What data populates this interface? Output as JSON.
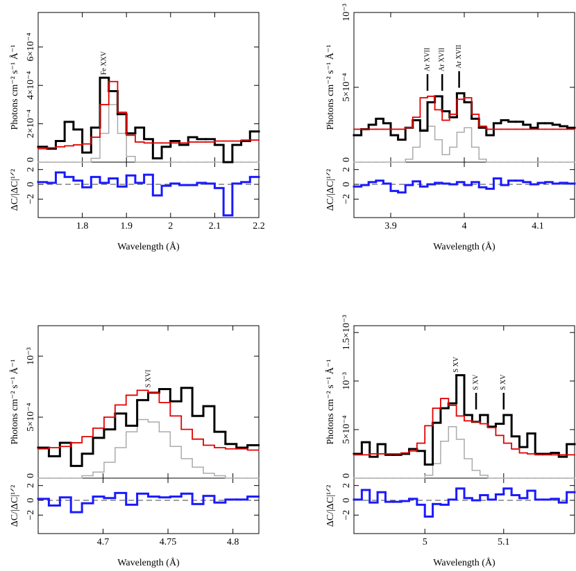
{
  "chart_data": [
    {
      "type": "step",
      "xlabel": "Wavelength (Å)",
      "ylabel": "Photons cm⁻² s⁻¹ Å⁻¹",
      "xlim": [
        1.7,
        2.2
      ],
      "xticks": [
        1.8,
        1.9,
        2,
        2.1,
        2.2
      ],
      "ylim": [
        0,
        0.00078
      ],
      "yticks": [
        0,
        {
          "value": 0.0002,
          "label": "2×10⁻⁴"
        },
        {
          "value": 0.0004,
          "label": "4×10⁻⁴"
        },
        {
          "value": 0.0006,
          "label": "6×10⁻⁴"
        }
      ],
      "x": [
        1.71,
        1.73,
        1.75,
        1.77,
        1.79,
        1.81,
        1.83,
        1.85,
        1.87,
        1.89,
        1.91,
        1.93,
        1.95,
        1.97,
        1.99,
        2.01,
        2.03,
        2.05,
        2.07,
        2.09,
        2.11,
        2.13,
        2.15,
        2.17,
        2.19
      ],
      "series": [
        {
          "color": "#aaaaaa",
          "width": 1.5,
          "values": [
            0,
            0,
            0,
            0,
            0,
            0,
            2e-05,
            0.00015,
            0.0003,
            0.00015,
            3e-05,
            0,
            0,
            0,
            0,
            0,
            0,
            0,
            0,
            0,
            0,
            0,
            0,
            0,
            0
          ]
        },
        {
          "color": "#000000",
          "width": 3,
          "values": [
            8e-05,
            7e-05,
            0.00011,
            0.00021,
            0.00017,
            5e-05,
            0.00018,
            0.00044,
            0.00037,
            0.00025,
            0.00015,
            0.00018,
            0.00012,
            2e-05,
            8e-05,
            0.00011,
            9e-05,
            0.00013,
            0.00012,
            0.00012,
            9e-05,
            0,
            9e-05,
            0.00011,
            0.00016
          ]
        },
        {
          "color": "#e00000",
          "width": 1.8,
          "values": [
            7e-05,
            7.5e-05,
            8e-05,
            8.5e-05,
            9e-05,
            9.5e-05,
            0.00013,
            0.0003,
            0.00042,
            0.00026,
            0.00014,
            0.000105,
            0.0001,
            0.0001,
            0.0001,
            0.0001,
            0.0001,
            0.000105,
            0.000105,
            0.000105,
            0.00011,
            0.00011,
            0.00011,
            0.000115,
            0.000115
          ]
        }
      ],
      "annotations": [
        {
          "text": "Fe XXV",
          "x": 1.85,
          "marker": false
        }
      ],
      "residuals": {
        "ylabel": "ΔC/|ΔC|¹ᐟ²",
        "color": "#1a1aff",
        "zero_line": true,
        "ylim": [
          -4.5,
          3
        ],
        "yticks": [
          {
            "value": -2,
            "label": "−2"
          },
          0,
          2
        ],
        "values": [
          0.3,
          0.2,
          1.6,
          1.0,
          0.5,
          -0.4,
          1.0,
          0.2,
          0.8,
          -0.3,
          1.2,
          0.2,
          1.3,
          -1.5,
          -0.2,
          0.1,
          -0.1,
          -0.1,
          0.2,
          0.1,
          -0.5,
          -4.2,
          0.1,
          0.3,
          1.0
        ]
      }
    },
    {
      "type": "step",
      "xlabel": "Wavelength (Å)",
      "ylabel": "Photons cm⁻² s⁻¹ Å⁻¹",
      "xlim": [
        3.85,
        4.15
      ],
      "xticks": [
        3.9,
        4,
        4.1
      ],
      "ylim": [
        0,
        0.001
      ],
      "yticks": [
        0,
        {
          "value": 0.0005,
          "label": "5×10⁻⁴"
        },
        {
          "value": 0.001,
          "label": "10⁻³"
        }
      ],
      "x": [
        3.855,
        3.865,
        3.875,
        3.885,
        3.895,
        3.905,
        3.915,
        3.925,
        3.935,
        3.945,
        3.955,
        3.965,
        3.975,
        3.985,
        3.995,
        4.005,
        4.015,
        4.025,
        4.035,
        4.045,
        4.055,
        4.065,
        4.075,
        4.085,
        4.095,
        4.105,
        4.115,
        4.125,
        4.135,
        4.145
      ],
      "series": [
        {
          "color": "#aaaaaa",
          "width": 1.5,
          "values": [
            0,
            0,
            0,
            0,
            0,
            0,
            0,
            2e-05,
            0.0001,
            0.00022,
            0.00024,
            0.00015,
            5e-05,
            0.0001,
            0.0002,
            0.00023,
            0.0001,
            2e-05,
            0,
            0,
            0,
            0,
            0,
            0,
            0,
            0,
            0,
            0,
            0,
            0
          ]
        },
        {
          "color": "#000000",
          "width": 3,
          "values": [
            0.00018,
            0.00022,
            0.00025,
            0.00029,
            0.00026,
            0.00018,
            0.00015,
            0.00023,
            0.00028,
            0.00021,
            0.0004,
            0.00044,
            0.00034,
            0.0003,
            0.00046,
            0.0004,
            0.00029,
            0.00023,
            0.00018,
            0.00026,
            0.00028,
            0.00027,
            0.00027,
            0.00025,
            0.00023,
            0.00026,
            0.00026,
            0.00025,
            0.00024,
            0.00023
          ]
        },
        {
          "color": "#e00000",
          "width": 1.8,
          "values": [
            0.00022,
            0.00022,
            0.00022,
            0.00022,
            0.00022,
            0.00022,
            0.00022,
            0.00023,
            0.0003,
            0.00043,
            0.00044,
            0.00035,
            0.00028,
            0.00032,
            0.00042,
            0.00043,
            0.00032,
            0.00024,
            0.00022,
            0.00022,
            0.00022,
            0.00022,
            0.00022,
            0.00022,
            0.00022,
            0.00022,
            0.00022,
            0.00022,
            0.00022,
            0.00022
          ]
        }
      ],
      "annotations": [
        {
          "text": "Ar XVII",
          "x": 3.95,
          "marker": true
        },
        {
          "text": "Ar XVII",
          "x": 3.97,
          "marker": true
        },
        {
          "text": "Ar XVII",
          "x": 3.993,
          "marker": true
        }
      ],
      "residuals": {
        "ylabel": "ΔC/|ΔC|¹ᐟ²",
        "color": "#1a1aff",
        "zero_line": true,
        "ylim": [
          -4.5,
          3
        ],
        "yticks": [
          {
            "value": -2,
            "label": "−2"
          },
          0,
          2
        ],
        "values": [
          -0.3,
          -0.1,
          0.3,
          0.5,
          0.1,
          -0.9,
          -1.1,
          -0.1,
          0.4,
          -0.3,
          0.0,
          0.2,
          0.1,
          0.0,
          0.3,
          -0.1,
          0.3,
          -0.4,
          -0.6,
          0.8,
          -0.1,
          0.5,
          0.5,
          0.3,
          0.0,
          0.2,
          0.3,
          0.1,
          0.2,
          0.1
        ]
      }
    },
    {
      "type": "step",
      "xlabel": "Wavelength (Å)",
      "ylabel": "Photons cm⁻² s⁻¹ Å⁻¹",
      "xlim": [
        4.65,
        4.82
      ],
      "xticks": [
        4.7,
        4.75,
        4.8
      ],
      "ylim": [
        0,
        0.00125
      ],
      "yticks": [
        0,
        {
          "value": 0.0005,
          "label": "5×10⁻⁴"
        },
        {
          "value": 0.001,
          "label": "10⁻³"
        }
      ],
      "x": [
        4.654,
        4.6625,
        4.671,
        4.6795,
        4.688,
        4.6965,
        4.705,
        4.7135,
        4.722,
        4.7305,
        4.739,
        4.7475,
        4.756,
        4.7645,
        4.773,
        4.7815,
        4.79,
        4.7985,
        4.807,
        4.8155
      ],
      "series": [
        {
          "color": "#aaaaaa",
          "width": 1.5,
          "values": [
            0,
            0,
            0,
            0,
            2e-05,
            5e-05,
            0.00013,
            0.00025,
            0.00038,
            0.00048,
            0.00046,
            0.00038,
            0.00026,
            0.00016,
            9e-05,
            4e-05,
            2e-05,
            0,
            0,
            0
          ]
        },
        {
          "color": "#000000",
          "width": 3,
          "values": [
            0.00025,
            0.00018,
            0.00029,
            0.0001,
            0.0002,
            0.00033,
            0.0004,
            0.00053,
            0.00043,
            0.00064,
            0.0007,
            0.00073,
            0.00063,
            0.00074,
            0.00051,
            0.00059,
            0.00038,
            0.00028,
            0.00025,
            0.00027
          ]
        },
        {
          "color": "#e00000",
          "width": 1.8,
          "values": [
            0.00024,
            0.00025,
            0.00026,
            0.00029,
            0.00034,
            0.00041,
            0.0005,
            0.0006,
            0.00068,
            0.00072,
            0.0007,
            0.00062,
            0.00051,
            0.0004,
            0.00032,
            0.00027,
            0.00025,
            0.00024,
            0.00024,
            0.00023
          ]
        }
      ],
      "annotations": [
        {
          "text": "S XVI",
          "x": 4.735,
          "marker": false
        }
      ],
      "residuals": {
        "ylabel": "ΔC/|ΔC|¹ᐟ²",
        "color": "#1a1aff",
        "zero_line": true,
        "ylim": [
          -4.5,
          3
        ],
        "yticks": [
          {
            "value": -2,
            "label": "−2"
          },
          0,
          2
        ],
        "values": [
          0.2,
          -0.7,
          0.4,
          -1.6,
          -0.4,
          0.5,
          0.3,
          1.0,
          -0.6,
          0.9,
          0.5,
          0.4,
          0.5,
          0.9,
          -0.5,
          0.6,
          -0.3,
          0.1,
          0.1,
          0.5
        ]
      }
    },
    {
      "type": "step",
      "xlabel": "Wavelength (Å)",
      "ylabel": "Photons cm⁻² s⁻¹ Å⁻¹",
      "xlim": [
        4.91,
        5.19
      ],
      "xticks": [
        5,
        5.1
      ],
      "ylim": [
        0,
        0.00157
      ],
      "yticks": [
        0,
        {
          "value": 0.0005,
          "label": "5×10⁻⁴"
        },
        {
          "value": 0.001,
          "label": "10⁻³"
        },
        {
          "value": 0.0015,
          "label": "1.5×10⁻³"
        }
      ],
      "x": [
        4.915,
        4.925,
        4.935,
        4.945,
        4.955,
        4.965,
        4.975,
        4.985,
        4.995,
        5.005,
        5.015,
        5.025,
        5.035,
        5.045,
        5.055,
        5.065,
        5.075,
        5.085,
        5.095,
        5.105,
        5.115,
        5.125,
        5.135,
        5.145,
        5.155,
        5.165,
        5.175,
        5.185
      ],
      "series": [
        {
          "color": "#aaaaaa",
          "width": 1.5,
          "values": [
            0,
            0,
            0,
            0,
            0,
            0,
            0,
            0,
            0,
            3e-05,
            0.00015,
            0.00038,
            0.00053,
            0.0004,
            0.0002,
            8e-05,
            3e-05,
            0,
            0,
            0,
            0,
            0,
            0,
            0,
            0,
            0,
            0,
            0
          ]
        },
        {
          "color": "#000000",
          "width": 3,
          "values": [
            0.00025,
            0.00037,
            0.00022,
            0.00035,
            0.00024,
            0.00024,
            0.00025,
            0.0003,
            0.00028,
            0.00014,
            0.00057,
            0.00072,
            0.00077,
            0.00106,
            0.00065,
            0.00058,
            0.00065,
            0.00053,
            0.00056,
            0.00065,
            0.00043,
            0.00032,
            0.00046,
            0.00025,
            0.00025,
            0.00026,
            0.00022,
            0.00035
          ]
        },
        {
          "color": "#e00000",
          "width": 1.8,
          "values": [
            0.00024,
            0.00024,
            0.00025,
            0.00025,
            0.00025,
            0.00025,
            0.00026,
            0.00028,
            0.00036,
            0.00054,
            0.00072,
            0.00082,
            0.00075,
            0.00064,
            0.00059,
            0.00058,
            0.00056,
            0.00052,
            0.00044,
            0.00036,
            0.0003,
            0.00026,
            0.00025,
            0.00024,
            0.00024,
            0.00024,
            0.00024,
            0.00024
          ]
        }
      ],
      "annotations": [
        {
          "text": "S XV",
          "x": 5.04,
          "marker": false
        },
        {
          "text": "S XV",
          "x": 5.065,
          "marker": true
        },
        {
          "text": "S XV",
          "x": 5.1,
          "marker": true
        }
      ],
      "residuals": {
        "ylabel": "ΔC/|ΔC|¹ᐟ²",
        "color": "#1a1aff",
        "zero_line": true,
        "ylim": [
          -4.5,
          3
        ],
        "yticks": [
          {
            "value": -2,
            "label": "−2"
          },
          0,
          2
        ],
        "values": [
          0.1,
          1.4,
          -0.3,
          1.1,
          -0.2,
          -0.2,
          -0.1,
          0.2,
          -0.6,
          -2.2,
          -0.5,
          -0.6,
          0.1,
          1.6,
          0.3,
          0.0,
          0.7,
          0.1,
          0.8,
          1.6,
          0.7,
          0.3,
          1.3,
          0.1,
          0.1,
          0.2,
          -0.3,
          1.1
        ]
      }
    }
  ]
}
